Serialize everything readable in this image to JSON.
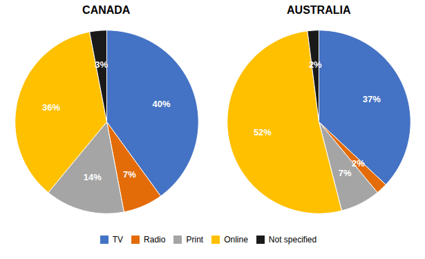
{
  "chart_data": [
    {
      "type": "pie",
      "title": "CANADA",
      "categories": [
        "TV",
        "Radio",
        "Print",
        "Online",
        "Not specified"
      ],
      "values": [
        40,
        7,
        14,
        36,
        3
      ],
      "value_labels": [
        "40%",
        "7%",
        "14%",
        "36%",
        "3%"
      ],
      "colors": [
        "#4472C4",
        "#E36C09",
        "#A5A5A5",
        "#FFC000",
        "#1A1A1A"
      ],
      "data_labels": true,
      "legend": "bottom"
    },
    {
      "type": "pie",
      "title": "AUSTRALIA",
      "categories": [
        "TV",
        "Radio",
        "Print",
        "Online",
        "Not specified"
      ],
      "values": [
        37,
        2,
        7,
        52,
        2
      ],
      "value_labels": [
        "37%",
        "2%",
        "7%",
        "52%",
        "2%"
      ],
      "colors": [
        "#4472C4",
        "#E36C09",
        "#A5A5A5",
        "#FFC000",
        "#1A1A1A"
      ],
      "data_labels": true,
      "legend": "bottom"
    }
  ]
}
